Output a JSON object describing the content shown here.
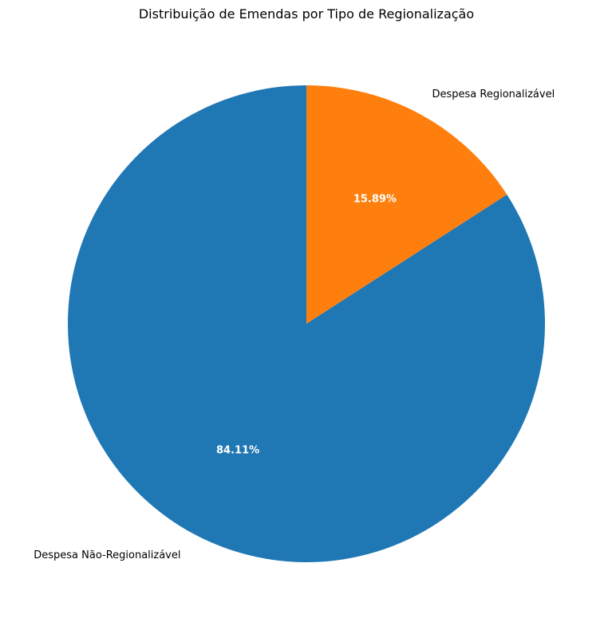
{
  "chart_data": {
    "type": "pie",
    "title": "Distribuição de Emendas por Tipo de Regionalização",
    "start_angle_deg": 90,
    "direction": "clockwise",
    "slices": [
      {
        "label": "Despesa Regionalizável",
        "value": 15.89,
        "pct_label": "15.89%",
        "color": "#ff7f0e"
      },
      {
        "label": "Despesa Não-Regionalizável",
        "value": 84.11,
        "pct_label": "84.11%",
        "color": "#1f77b4"
      }
    ]
  }
}
